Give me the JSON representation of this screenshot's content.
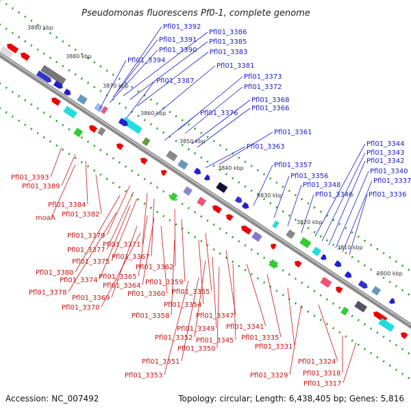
{
  "title": "Pseudomonas fluorescens Pf0-1, complete genome",
  "footer": {
    "accession": "Accession: NC_007492",
    "topology": "Topology: circular; Length: 6,438,405 bp; Genes: 5,816"
  },
  "colors": {
    "forward_label": "#1a1acc",
    "reverse_label": "#cc1111",
    "backbone": "#8a8a8a",
    "dot_track": "#2aa02a"
  },
  "kbp_ticks": [
    "3890 kbp",
    "3880 kbp",
    "3870 kbp",
    "3860 kbp",
    "3850 kbp",
    "3840 kbp",
    "3830 kbp",
    "3820 kbp",
    "3810 kbp",
    "3800 kbp"
  ],
  "forward_genes": [
    "Pfl01_3392",
    "Pfl01_3386",
    "Pfl01_3391",
    "Pfl01_3385",
    "Pfl01_3390",
    "Pfl01_3383",
    "Pfl01_3394",
    "Pfl01_3381",
    "Pfl01_3387",
    "Pfl01_3373",
    "Pfl01_3372",
    "Pfl01_3368",
    "Pfl01_3366",
    "Pfl01_3376",
    "Pfl01_3361",
    "Pfl01_3363",
    "Pfl01_3344",
    "Pfl01_3343",
    "Pfl01_3342",
    "Pfl01_3357",
    "Pfl01_3340",
    "Pfl01_3356",
    "Pfl01_3348",
    "Pfl01_3337",
    "Pfl01_3346",
    "Pfl01_3336"
  ],
  "reverse_genes": [
    "Pfl01_3393",
    "Pfl01_3389",
    "Pfl01_3384",
    "moaA",
    "Pfl01_3382",
    "Pfl01_3379",
    "Pfl01_3377",
    "Pfl01_3371",
    "Pfl01_3375",
    "Pfl01_3367",
    "Pfl01_3380",
    "Pfl01_3374",
    "Pfl01_3362",
    "Pfl01_3365",
    "Pfl01_3378",
    "Pfl01_3364",
    "Pfl01_3359",
    "Pfl01_3369",
    "Pfl01_3360",
    "Pfl01_3355",
    "Pfl01_3370",
    "Pfl01_3354",
    "Pfl01_3358",
    "Pfl01_3347",
    "Pfl01_3349",
    "Pfl01_3341",
    "Pfl01_3352",
    "Pfl01_3345",
    "Pfl01_3335",
    "Pfl01_3350",
    "Pfl01_3331",
    "Pfl01_3351",
    "Pfl01_3324",
    "Pfl01_3353",
    "Pfl01_3329",
    "Pfl01_3318",
    "Pfl01_3317"
  ]
}
